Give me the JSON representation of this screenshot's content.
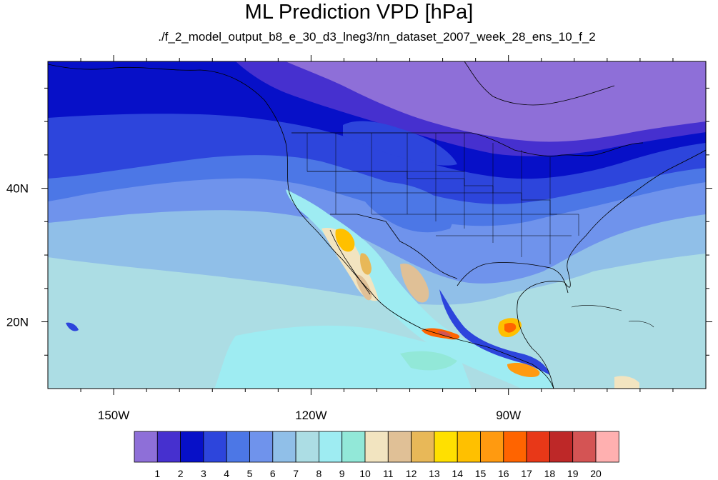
{
  "title": "ML Prediction VPD [hPa]",
  "subtitle": "./f_2_model_output_b8_e_30_d3_lneg3/nn_dataset_2007_week_28_ens_10_f_2",
  "map": {
    "lon_range": [
      -160,
      -60
    ],
    "lat_range": [
      10,
      59
    ],
    "lon_ticks": [
      {
        "value": -150,
        "label": "150W"
      },
      {
        "value": -120,
        "label": "120W"
      },
      {
        "value": -90,
        "label": "90W"
      }
    ],
    "lat_ticks": [
      {
        "value": 40,
        "label": "40N"
      },
      {
        "value": 20,
        "label": "20N"
      }
    ]
  },
  "colorbar": {
    "labels": [
      "1",
      "2",
      "3",
      "4",
      "5",
      "6",
      "7",
      "8",
      "9",
      "10",
      "11",
      "12",
      "13",
      "14",
      "15",
      "16",
      "17",
      "18",
      "19",
      "20"
    ],
    "colors": [
      "#8e6fd8",
      "#4630cf",
      "#0710c8",
      "#2d45dc",
      "#4c77e6",
      "#6f93ec",
      "#90bfe8",
      "#acdde4",
      "#9eecf2",
      "#92e8d8",
      "#f2e4c0",
      "#e0c096",
      "#e8b858",
      "#ffe000",
      "#ffc000",
      "#ff9a10",
      "#ff6400",
      "#e83818",
      "#be2828",
      "#d45454",
      "#ffb0b0"
    ]
  }
}
